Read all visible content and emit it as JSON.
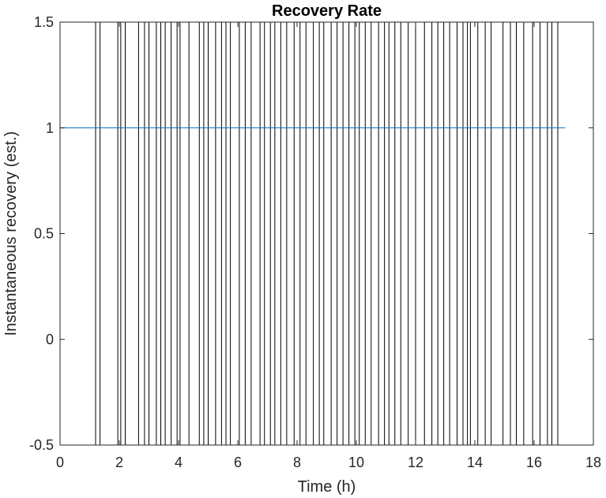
{
  "chart_data": {
    "type": "line",
    "title": "Recovery Rate",
    "xlabel": "Time (h)",
    "ylabel": "Instantaneous recovery (est.)",
    "xlim": [
      0,
      18
    ],
    "ylim": [
      -0.5,
      1.5
    ],
    "xticks": [
      "0",
      "2",
      "4",
      "6",
      "8",
      "10",
      "12",
      "14",
      "16",
      "18"
    ],
    "yticks": [
      "-0.5",
      "0",
      "0.5",
      "1",
      "1.5"
    ],
    "grid": false,
    "series": [
      {
        "color": "#0072BD",
        "x": [
          0,
          17.05
        ],
        "y": [
          1,
          1
        ]
      }
    ],
    "vertical_lines": {
      "color": "#000000",
      "x": [
        1.2,
        1.35,
        1.95,
        2.05,
        2.2,
        2.65,
        2.85,
        3.0,
        3.25,
        3.4,
        3.55,
        3.75,
        3.95,
        4.05,
        4.35,
        4.7,
        4.85,
        5.0,
        5.25,
        5.45,
        5.6,
        5.75,
        6.05,
        6.25,
        6.45,
        6.75,
        6.9,
        7.1,
        7.25,
        7.45,
        7.65,
        7.9,
        8.1,
        8.3,
        8.55,
        8.75,
        8.9,
        9.15,
        9.35,
        9.55,
        9.75,
        9.95,
        10.1,
        10.3,
        10.5,
        10.75,
        10.95,
        11.1,
        11.3,
        11.5,
        11.75,
        12.0,
        12.3,
        12.55,
        12.75,
        12.95,
        13.15,
        13.4,
        13.6,
        13.75,
        13.85,
        14.1,
        14.35,
        14.55,
        14.95,
        15.2,
        15.4,
        15.65,
        15.95,
        16.2,
        16.45,
        16.6,
        16.8
      ]
    }
  }
}
